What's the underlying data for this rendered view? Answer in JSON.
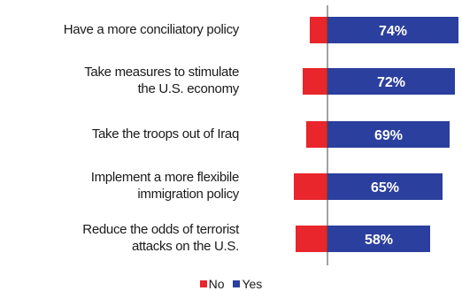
{
  "colors": {
    "no": "#e8262c",
    "yes": "#2b3f9e",
    "axis": "#444444",
    "label_text": "#ffffff"
  },
  "chart_data": {
    "type": "bar",
    "orientation": "horizontal",
    "stacked": "diverging",
    "categories": [
      "Have a more conciliatory policy",
      "Take measures to stimulate the U.S. economy",
      "Take the troops out of Iraq",
      "Implement a more flexibile immigration policy",
      "Reduce the odds of terrorist attacks on the U.S."
    ],
    "category_lines": [
      [
        "Have a more conciliatory policy"
      ],
      [
        "Take measures to stimulate",
        "the U.S. economy"
      ],
      [
        "Take the troops out of Iraq"
      ],
      [
        "Implement a more flexibile",
        "immigration policy"
      ],
      [
        "Reduce the odds of terrorist",
        "attacks on the U.S."
      ]
    ],
    "series": [
      {
        "name": "No",
        "values": [
          10,
          14,
          12,
          19,
          18
        ]
      },
      {
        "name": "Yes",
        "values": [
          74,
          72,
          69,
          65,
          58
        ],
        "labels": [
          "74%",
          "72%",
          "69%",
          "65%",
          "58%"
        ]
      }
    ],
    "legend_position": "bottom-center",
    "grid": false
  }
}
